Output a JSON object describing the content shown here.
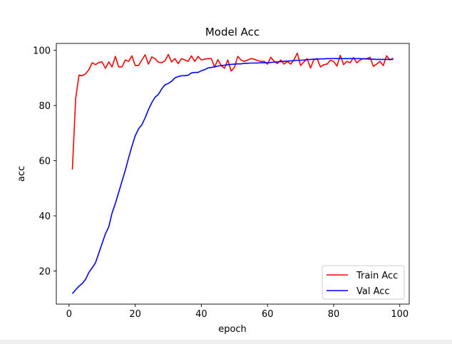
{
  "chart_data": {
    "type": "line",
    "title": "Model Acc",
    "xlabel": "epoch",
    "ylabel": "acc",
    "xlim": [
      -3.85,
      102.85
    ],
    "ylim": [
      8.0,
      102.5
    ],
    "xticks": [
      0,
      20,
      40,
      60,
      80,
      100
    ],
    "yticks": [
      20,
      40,
      60,
      80,
      100
    ],
    "legend_position": "lower-right",
    "series": [
      {
        "name": "Train Acc",
        "color": "#ff0000",
        "x": [
          1,
          2,
          3,
          4,
          5,
          6,
          7,
          8,
          9,
          10,
          11,
          12,
          13,
          14,
          15,
          16,
          17,
          18,
          19,
          20,
          21,
          22,
          23,
          24,
          25,
          26,
          27,
          28,
          29,
          30,
          31,
          32,
          33,
          34,
          35,
          36,
          37,
          38,
          39,
          40,
          41,
          42,
          43,
          44,
          45,
          46,
          47,
          48,
          49,
          50,
          51,
          52,
          53,
          54,
          55,
          56,
          57,
          58,
          59,
          60,
          61,
          62,
          63,
          64,
          65,
          66,
          67,
          68,
          69,
          70,
          71,
          72,
          73,
          74,
          75,
          76,
          77,
          78,
          79,
          80,
          81,
          82,
          83,
          84,
          85,
          86,
          87,
          88,
          89,
          90,
          91,
          92,
          93,
          94,
          95,
          96,
          97,
          98
        ],
        "values": [
          56.8,
          82.5,
          91.0,
          90.8,
          91.5,
          93.0,
          95.5,
          94.8,
          95.6,
          95.8,
          93.5,
          95.8,
          94.0,
          97.8,
          94.0,
          94.0,
          96.5,
          96.0,
          98.0,
          94.5,
          94.5,
          96.5,
          98.4,
          95.0,
          97.6,
          97.0,
          95.7,
          95.5,
          96.2,
          98.5,
          95.8,
          97.0,
          95.2,
          97.0,
          96.5,
          96.0,
          98.0,
          96.0,
          97.8,
          96.5,
          96.8,
          97.0,
          97.0,
          94.0,
          96.6,
          94.5,
          93.5,
          96.5,
          92.5,
          93.8,
          97.8,
          96.5,
          96.0,
          96.5,
          97.0,
          96.8,
          96.3,
          96.0,
          96.0,
          95.0,
          97.5,
          96.0,
          95.2,
          96.5,
          95.0,
          96.0,
          95.0,
          96.5,
          99.0,
          94.5,
          95.8,
          97.0,
          93.6,
          96.6,
          97.0,
          94.0,
          94.8,
          95.0,
          96.4,
          96.0,
          94.3,
          98.2,
          94.8,
          96.0,
          95.5,
          97.4,
          95.5,
          96.5,
          97.0,
          97.0,
          97.5,
          94.2,
          95.0,
          96.0,
          94.5,
          98.0,
          96.5,
          97.2
        ]
      },
      {
        "name": "Val Acc",
        "color": "#0000ff",
        "x": [
          1,
          2,
          3,
          4,
          5,
          6,
          7,
          8,
          9,
          10,
          11,
          12,
          13,
          14,
          15,
          16,
          17,
          18,
          19,
          20,
          21,
          22,
          23,
          24,
          25,
          26,
          27,
          28,
          29,
          30,
          31,
          32,
          33,
          34,
          35,
          36,
          37,
          38,
          39,
          40,
          41,
          42,
          43,
          44,
          45,
          46,
          47,
          48,
          49,
          50,
          51,
          52,
          53,
          54,
          55,
          56,
          57,
          58,
          59,
          60,
          61,
          62,
          63,
          64,
          65,
          66,
          67,
          68,
          69,
          70,
          71,
          72,
          73,
          74,
          75,
          76,
          77,
          78,
          79,
          80,
          81,
          82,
          83,
          84,
          85,
          86,
          87,
          88,
          89,
          90,
          91,
          92,
          93,
          94,
          95,
          96,
          97,
          98
        ],
        "values": [
          11.8,
          13.2,
          14.5,
          15.5,
          17.0,
          19.5,
          21.2,
          23.0,
          26.5,
          30.0,
          33.5,
          36.0,
          41.0,
          44.5,
          48.5,
          52.5,
          56.5,
          61.0,
          65.2,
          69.0,
          71.5,
          73.0,
          75.5,
          78.5,
          81.0,
          83.0,
          84.0,
          86.0,
          87.5,
          88.0,
          88.8,
          90.0,
          90.5,
          90.8,
          90.8,
          91.0,
          91.8,
          92.0,
          92.0,
          92.6,
          93.0,
          93.6,
          93.8,
          94.0,
          94.3,
          94.5,
          94.6,
          94.8,
          94.9,
          95.0,
          95.1,
          95.1,
          95.3,
          95.3,
          95.4,
          95.4,
          95.4,
          95.5,
          95.5,
          95.5,
          95.6,
          95.7,
          95.8,
          95.9,
          96.0,
          96.1,
          96.2,
          96.3,
          96.4,
          96.4,
          96.5,
          96.6,
          96.7,
          96.8,
          96.8,
          96.9,
          96.9,
          97.0,
          97.0,
          97.0,
          97.0,
          97.0,
          97.0,
          97.0,
          97.0,
          97.0,
          97.0,
          97.0,
          96.9,
          96.9,
          96.8,
          96.8,
          96.7,
          96.7,
          96.7,
          96.7,
          96.7,
          96.7
        ]
      }
    ]
  }
}
